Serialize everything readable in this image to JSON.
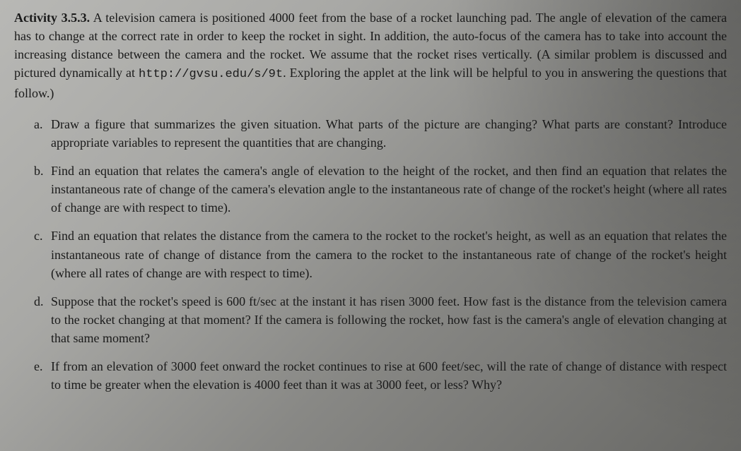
{
  "activity_label": "Activity 3.5.3.",
  "intro_text": "A television camera is positioned 4000 feet from the base of a rocket launching pad. The angle of elevation of the camera has to change at the correct rate in order to keep the rocket in sight. In addition, the auto-focus of the camera has to take into account the increasing distance between the camera and the rocket. We assume that the rocket rises vertically. (A similar problem is discussed and pictured dynamically at ",
  "url": "http://gvsu.edu/s/9t",
  "intro_text_after": ". Exploring the applet at the link will be helpful to you in answering the questions that follow.)",
  "items": [
    {
      "marker": "a.",
      "text": "Draw a figure that summarizes the given situation. What parts of the picture are changing? What parts are constant? Introduce appropriate variables to represent the quantities that are changing."
    },
    {
      "marker": "b.",
      "text": "Find an equation that relates the camera's angle of elevation to the height of the rocket, and then find an equation that relates the instantaneous rate of change of the camera's elevation angle to the instantaneous rate of change of the rocket's height (where all rates of change are with respect to time)."
    },
    {
      "marker": "c.",
      "text": "Find an equation that relates the distance from the camera to the rocket to the rocket's height, as well as an equation that relates the instantaneous rate of change of distance from the camera to the rocket to the instantaneous rate of change of the rocket's height (where all rates of change are with respect to time)."
    },
    {
      "marker": "d.",
      "text": "Suppose that the rocket's speed is 600 ft/sec at the instant it has risen 3000 feet. How fast is the distance from the television camera to the rocket changing at that moment? If the camera is following the rocket, how fast is the camera's angle of elevation changing at that same moment?"
    },
    {
      "marker": "e.",
      "text": "If from an elevation of 3000 feet onward the rocket continues to rise at 600 feet/sec, will the rate of change of distance with respect to time be greater when the elevation is 4000 feet than it was at 3000 feet, or less? Why?"
    }
  ]
}
